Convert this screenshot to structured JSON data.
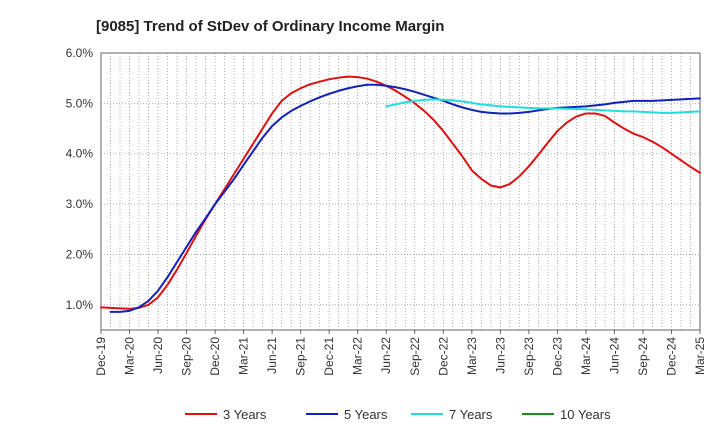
{
  "chart_data": {
    "type": "line",
    "title": "[9085]  Trend of StDev of Ordinary Income Margin",
    "xlabel": "",
    "ylabel": "",
    "ylim": [
      0.005,
      0.06
    ],
    "y_ticks": [
      0.01,
      0.02,
      0.03,
      0.04,
      0.05,
      0.06
    ],
    "y_tick_labels": [
      "1.0%",
      "2.0%",
      "3.0%",
      "4.0%",
      "5.0%",
      "6.0%"
    ],
    "x_tick_labels": [
      "Dec-19",
      "Mar-20",
      "Jun-20",
      "Sep-20",
      "Dec-20",
      "Mar-21",
      "Jun-21",
      "Sep-21",
      "Dec-21",
      "Mar-22",
      "Jun-22",
      "Sep-22",
      "Dec-22",
      "Mar-23",
      "Jun-23",
      "Sep-23",
      "Dec-23",
      "Mar-24",
      "Jun-24",
      "Sep-24",
      "Dec-24",
      "Mar-25"
    ],
    "grid": true,
    "legend_position": "bottom",
    "series": [
      {
        "name": "3 Years",
        "color": "#dd1111",
        "points": [
          [
            "Dec-19",
            0.0095
          ],
          [
            "Jan-20",
            0.0094
          ],
          [
            "Feb-20",
            0.0093
          ],
          [
            "Mar-20",
            0.0092
          ],
          [
            "Apr-20",
            0.0094
          ],
          [
            "May-20",
            0.01
          ],
          [
            "Jun-20",
            0.0115
          ],
          [
            "Jul-20",
            0.014
          ],
          [
            "Aug-20",
            0.017
          ],
          [
            "Sep-20",
            0.0203
          ],
          [
            "Oct-20",
            0.0237
          ],
          [
            "Nov-20",
            0.027
          ],
          [
            "Dec-20",
            0.03
          ],
          [
            "Jan-21",
            0.033
          ],
          [
            "Feb-21",
            0.036
          ],
          [
            "Mar-21",
            0.039
          ],
          [
            "Apr-21",
            0.042
          ],
          [
            "May-21",
            0.045
          ],
          [
            "Jun-21",
            0.048
          ],
          [
            "Jul-21",
            0.0505
          ],
          [
            "Aug-21",
            0.052
          ],
          [
            "Sep-21",
            0.053
          ],
          [
            "Oct-21",
            0.0538
          ],
          [
            "Nov-21",
            0.0543
          ],
          [
            "Dec-21",
            0.0548
          ],
          [
            "Jan-22",
            0.0551
          ],
          [
            "Feb-22",
            0.0553
          ],
          [
            "Mar-22",
            0.0552
          ],
          [
            "Apr-22",
            0.0549
          ],
          [
            "May-22",
            0.0543
          ],
          [
            "Jun-22",
            0.0535
          ],
          [
            "Jul-22",
            0.0525
          ],
          [
            "Aug-22",
            0.0513
          ],
          [
            "Sep-22",
            0.05
          ],
          [
            "Oct-22",
            0.0485
          ],
          [
            "Nov-22",
            0.0467
          ],
          [
            "Dec-22",
            0.0445
          ],
          [
            "Jan-23",
            0.042
          ],
          [
            "Feb-23",
            0.0395
          ],
          [
            "Mar-23",
            0.0367
          ],
          [
            "Apr-23",
            0.035
          ],
          [
            "May-23",
            0.0337
          ],
          [
            "Jun-23",
            0.0333
          ],
          [
            "Jul-23",
            0.034
          ],
          [
            "Aug-23",
            0.0355
          ],
          [
            "Sep-23",
            0.0375
          ],
          [
            "Oct-23",
            0.0398
          ],
          [
            "Nov-23",
            0.0422
          ],
          [
            "Dec-23",
            0.0445
          ],
          [
            "Jan-24",
            0.0462
          ],
          [
            "Feb-24",
            0.0474
          ],
          [
            "Mar-24",
            0.048
          ],
          [
            "Apr-24",
            0.048
          ],
          [
            "May-24",
            0.0475
          ],
          [
            "Jun-24",
            0.0462
          ],
          [
            "Jul-24",
            0.045
          ],
          [
            "Aug-24",
            0.044
          ],
          [
            "Sep-24",
            0.0433
          ],
          [
            "Oct-24",
            0.0424
          ],
          [
            "Nov-24",
            0.0413
          ],
          [
            "Dec-24",
            0.04
          ],
          [
            "Jan-25",
            0.0387
          ],
          [
            "Feb-25",
            0.0374
          ],
          [
            "Mar-25",
            0.0362
          ]
        ]
      },
      {
        "name": "5 Years",
        "color": "#1122bb",
        "points": [
          [
            "Jan-20",
            0.0086
          ],
          [
            "Feb-20",
            0.0086
          ],
          [
            "Mar-20",
            0.0088
          ],
          [
            "Apr-20",
            0.0095
          ],
          [
            "May-20",
            0.0108
          ],
          [
            "Jun-20",
            0.0128
          ],
          [
            "Jul-20",
            0.0155
          ],
          [
            "Aug-20",
            0.0185
          ],
          [
            "Sep-20",
            0.0215
          ],
          [
            "Oct-20",
            0.0245
          ],
          [
            "Nov-20",
            0.0272
          ],
          [
            "Dec-20",
            0.03
          ],
          [
            "Jan-21",
            0.0325
          ],
          [
            "Feb-21",
            0.035
          ],
          [
            "Mar-21",
            0.0378
          ],
          [
            "Apr-21",
            0.0405
          ],
          [
            "May-21",
            0.0432
          ],
          [
            "Jun-21",
            0.0455
          ],
          [
            "Jul-21",
            0.0472
          ],
          [
            "Aug-21",
            0.0485
          ],
          [
            "Sep-21",
            0.0495
          ],
          [
            "Oct-21",
            0.0504
          ],
          [
            "Nov-21",
            0.0512
          ],
          [
            "Dec-21",
            0.0519
          ],
          [
            "Jan-22",
            0.0525
          ],
          [
            "Feb-22",
            0.053
          ],
          [
            "Mar-22",
            0.0534
          ],
          [
            "Apr-22",
            0.0537
          ],
          [
            "May-22",
            0.0537
          ],
          [
            "Jun-22",
            0.0535
          ],
          [
            "Jul-22",
            0.0532
          ],
          [
            "Aug-22",
            0.0528
          ],
          [
            "Sep-22",
            0.0523
          ],
          [
            "Oct-22",
            0.0517
          ],
          [
            "Nov-22",
            0.0511
          ],
          [
            "Dec-22",
            0.0505
          ],
          [
            "Jan-23",
            0.0498
          ],
          [
            "Feb-23",
            0.0492
          ],
          [
            "Mar-23",
            0.0487
          ],
          [
            "Apr-23",
            0.0483
          ],
          [
            "May-23",
            0.0481
          ],
          [
            "Jun-23",
            0.048
          ],
          [
            "Jul-23",
            0.048
          ],
          [
            "Aug-23",
            0.0481
          ],
          [
            "Sep-23",
            0.0483
          ],
          [
            "Oct-23",
            0.0486
          ],
          [
            "Nov-23",
            0.0489
          ],
          [
            "Dec-23",
            0.0491
          ],
          [
            "Jan-24",
            0.0492
          ],
          [
            "Feb-24",
            0.0493
          ],
          [
            "Mar-24",
            0.0494
          ],
          [
            "Apr-24",
            0.0496
          ],
          [
            "May-24",
            0.0498
          ],
          [
            "Jun-24",
            0.0501
          ],
          [
            "Jul-24",
            0.0503
          ],
          [
            "Aug-24",
            0.0505
          ],
          [
            "Sep-24",
            0.0505
          ],
          [
            "Oct-24",
            0.0505
          ],
          [
            "Nov-24",
            0.0506
          ],
          [
            "Dec-24",
            0.0507
          ],
          [
            "Jan-25",
            0.0508
          ],
          [
            "Feb-25",
            0.0509
          ],
          [
            "Mar-25",
            0.051
          ]
        ]
      },
      {
        "name": "7 Years",
        "color": "#22dddd",
        "points": [
          [
            "Jun-22",
            0.0494
          ],
          [
            "Jul-22",
            0.0498
          ],
          [
            "Aug-22",
            0.0502
          ],
          [
            "Sep-22",
            0.0505
          ],
          [
            "Oct-22",
            0.0507
          ],
          [
            "Nov-22",
            0.0508
          ],
          [
            "Dec-22",
            0.0507
          ],
          [
            "Jan-23",
            0.0506
          ],
          [
            "Feb-23",
            0.0504
          ],
          [
            "Mar-23",
            0.0501
          ],
          [
            "Apr-23",
            0.0498
          ],
          [
            "May-23",
            0.0496
          ],
          [
            "Jun-23",
            0.0494
          ],
          [
            "Jul-23",
            0.0493
          ],
          [
            "Aug-23",
            0.0492
          ],
          [
            "Sep-23",
            0.0491
          ],
          [
            "Oct-23",
            0.049
          ],
          [
            "Nov-23",
            0.049
          ],
          [
            "Dec-23",
            0.049
          ],
          [
            "Jan-24",
            0.0489
          ],
          [
            "Feb-24",
            0.0489
          ],
          [
            "Mar-24",
            0.0488
          ],
          [
            "Apr-24",
            0.0487
          ],
          [
            "May-24",
            0.0486
          ],
          [
            "Jun-24",
            0.0485
          ],
          [
            "Jul-24",
            0.0484
          ],
          [
            "Aug-24",
            0.0484
          ],
          [
            "Sep-24",
            0.0483
          ],
          [
            "Oct-24",
            0.0482
          ],
          [
            "Nov-24",
            0.0481
          ],
          [
            "Dec-24",
            0.0481
          ],
          [
            "Jan-25",
            0.0482
          ],
          [
            "Feb-25",
            0.0483
          ],
          [
            "Mar-25",
            0.0484
          ]
        ]
      },
      {
        "name": "10 Years",
        "color": "#228822",
        "points": []
      }
    ]
  }
}
